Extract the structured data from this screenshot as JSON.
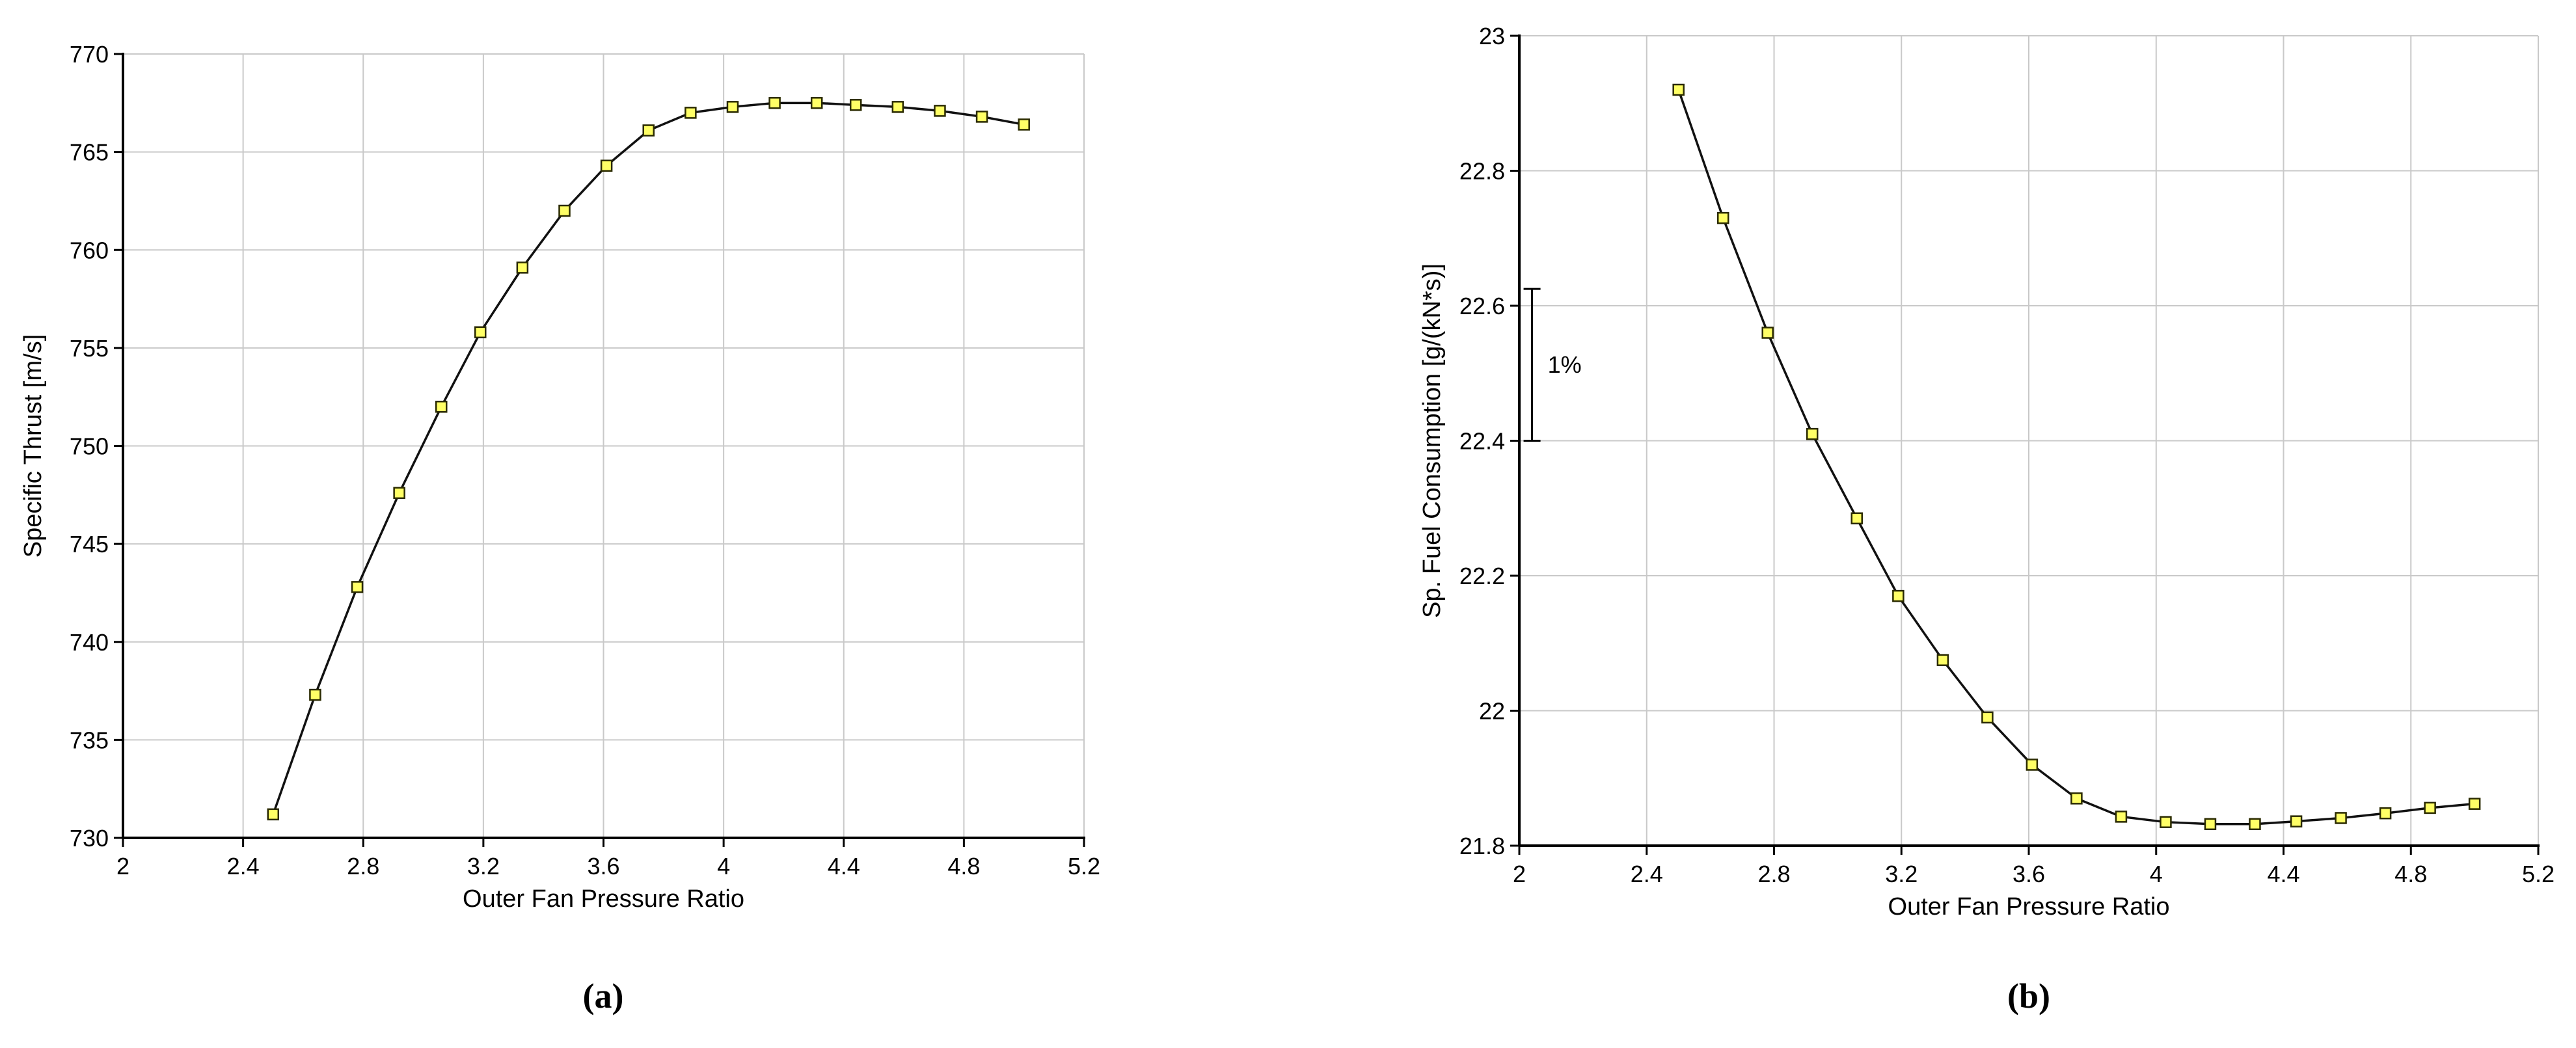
{
  "figure": {
    "background": "#ffffff",
    "sublabel_a": "(a)",
    "sublabel_b": "(b)"
  },
  "style": {
    "grid_color": "#c9c9c9",
    "axis_color": "#000000",
    "line_color": "#111111",
    "marker_fill": "#ffff66",
    "marker_stroke": "#2a2a00",
    "text_color": "#000000"
  },
  "chart_data": [
    {
      "id": "a",
      "type": "line",
      "title": "",
      "xlabel": "Outer Fan Pressure Ratio",
      "ylabel": "Specific Thrust [m/s]",
      "xlim": [
        2,
        5.2
      ],
      "ylim": [
        730,
        770
      ],
      "xticks": [
        2,
        2.4,
        2.8,
        3.2,
        3.6,
        4,
        4.4,
        4.8,
        5.2
      ],
      "xtick_labels": [
        "2",
        "2.4",
        "2.8",
        "3.2",
        "3.6",
        "4",
        "4.4",
        "4.8",
        "5.2"
      ],
      "yticks": [
        730,
        735,
        740,
        745,
        750,
        755,
        760,
        765,
        770
      ],
      "ytick_labels": [
        "730",
        "735",
        "740",
        "745",
        "750",
        "755",
        "760",
        "765",
        "770"
      ],
      "grid": true,
      "legend": "none",
      "x": [
        2.5,
        2.64,
        2.78,
        2.92,
        3.06,
        3.19,
        3.33,
        3.47,
        3.61,
        3.75,
        3.89,
        4.03,
        4.17,
        4.31,
        4.44,
        4.58,
        4.72,
        4.86,
        5.0
      ],
      "y": [
        731.2,
        737.3,
        742.8,
        747.6,
        752.0,
        755.8,
        759.1,
        762.0,
        764.3,
        766.1,
        767.0,
        767.3,
        767.5,
        767.5,
        767.4,
        767.3,
        767.1,
        766.8,
        766.4
      ],
      "annotations": []
    },
    {
      "id": "b",
      "type": "line",
      "title": "",
      "xlabel": "Outer Fan Pressure Ratio",
      "ylabel": "Sp. Fuel Consumption [g/(kN*s)]",
      "xlim": [
        2,
        5.2
      ],
      "ylim": [
        21.8,
        23
      ],
      "xticks": [
        2,
        2.4,
        2.8,
        3.2,
        3.6,
        4,
        4.4,
        4.8,
        5.2
      ],
      "xtick_labels": [
        "2",
        "2.4",
        "2.8",
        "3.2",
        "3.6",
        "4",
        "4.4",
        "4.8",
        "5.2"
      ],
      "yticks": [
        21.8,
        22,
        22.2,
        22.4,
        22.6,
        22.8,
        23
      ],
      "ytick_labels": [
        "21.8",
        "22",
        "22.2",
        "22.4",
        "22.6",
        "22.8",
        "23"
      ],
      "grid": true,
      "legend": "none",
      "x": [
        2.5,
        2.64,
        2.78,
        2.92,
        3.06,
        3.19,
        3.33,
        3.47,
        3.61,
        3.75,
        3.89,
        4.03,
        4.17,
        4.31,
        4.44,
        4.58,
        4.72,
        4.86,
        5.0
      ],
      "y": [
        22.92,
        22.73,
        22.56,
        22.41,
        22.285,
        22.17,
        22.075,
        21.99,
        21.92,
        21.87,
        21.843,
        21.835,
        21.832,
        21.832,
        21.836,
        21.841,
        21.848,
        21.856,
        21.862
      ],
      "annotations": [
        {
          "type": "error_bar",
          "x": 2.04,
          "y1": 22.4,
          "y2": 22.625,
          "label": "1%"
        }
      ]
    }
  ]
}
